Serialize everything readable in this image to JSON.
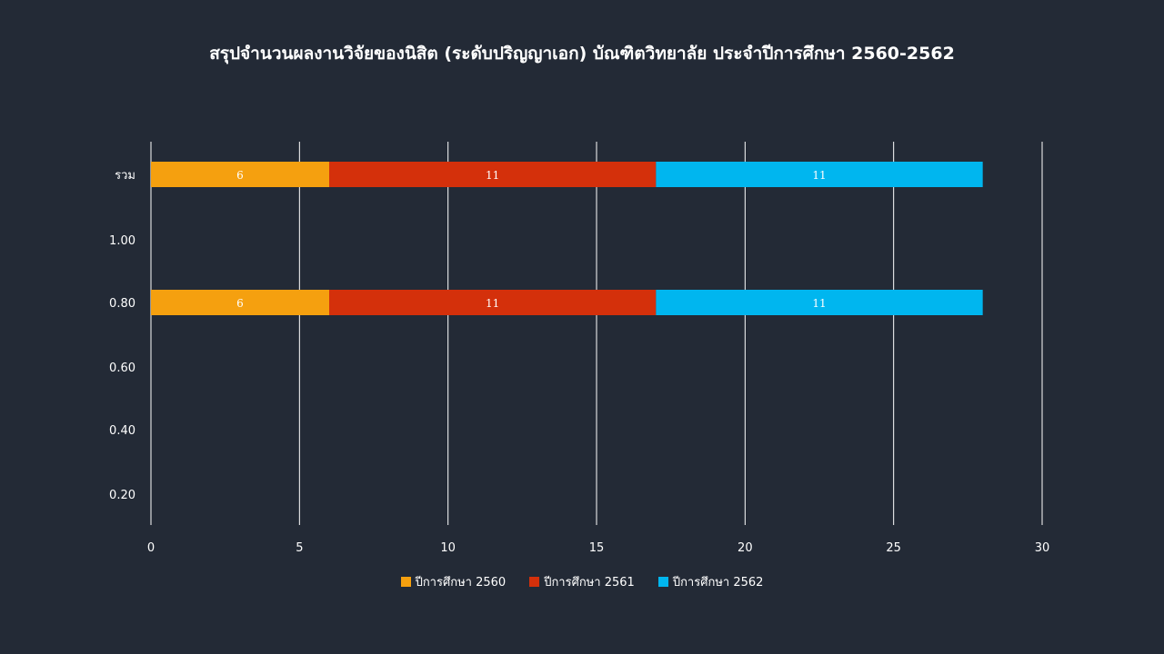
{
  "chart_data": {
    "type": "bar",
    "orientation": "horizontal",
    "stacked": true,
    "title": "สรุปจำนวนผลงานวิจัยของนิสิต (ระดับปริญญาเอก) บัณฑิตวิทยาลัย ประจำปีการศึกษา 2560-2562",
    "categories": [
      "รวม",
      "1.00",
      "0.80",
      "0.60",
      "0.40",
      "0.20"
    ],
    "series": [
      {
        "name": "ปีการศึกษา  2560",
        "color": "#f5a00f",
        "values": [
          6,
          null,
          6,
          null,
          null,
          null
        ]
      },
      {
        "name": "ปีการศึกษา  2561",
        "color": "#d4300b",
        "values": [
          11,
          null,
          11,
          null,
          null,
          null
        ]
      },
      {
        "name": "ปีการศึกษา  2562",
        "color": "#00b6ef",
        "values": [
          11,
          null,
          11,
          null,
          null,
          null
        ]
      }
    ],
    "x_ticks": [
      "0",
      "5",
      "10",
      "15",
      "20",
      "25",
      "30"
    ],
    "xlim": [
      0,
      30
    ],
    "grid": true,
    "legend": "bottom-center"
  }
}
